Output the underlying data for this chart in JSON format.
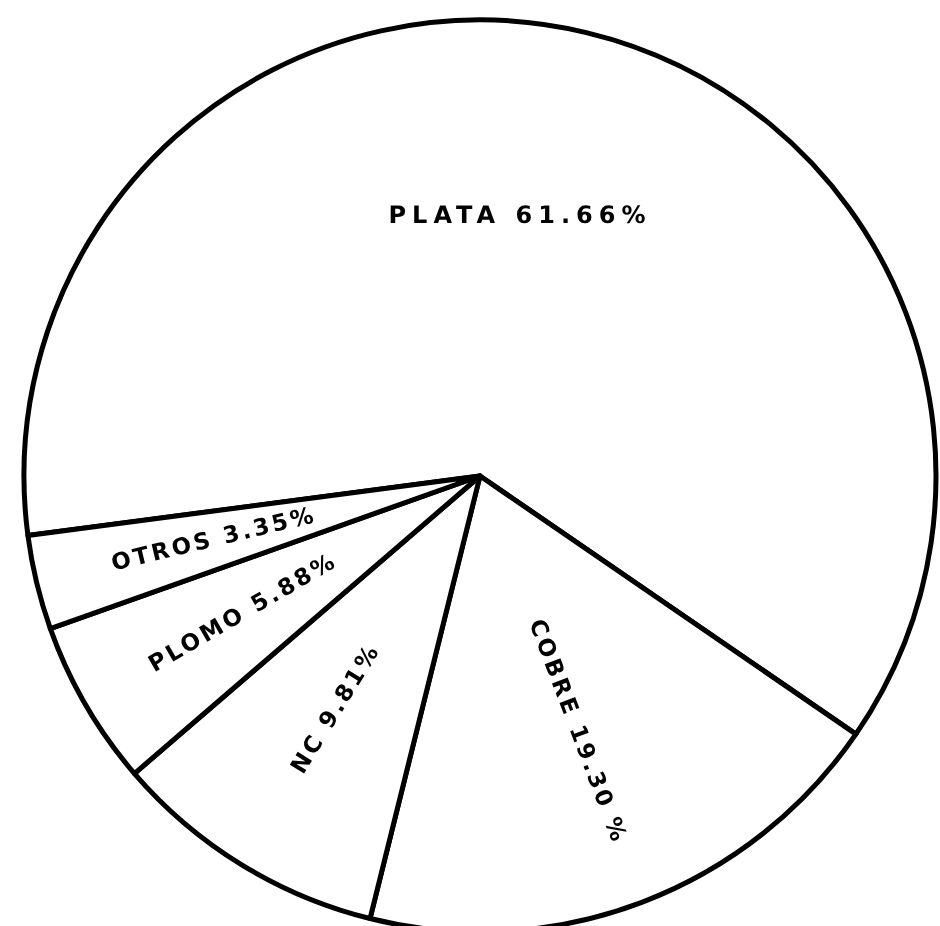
{
  "chart_data": {
    "type": "pie",
    "categories": [
      "PLATA",
      "COBRE",
      "NC",
      "PLOMO",
      "OTROS"
    ],
    "values": [
      61.66,
      19.3,
      9.81,
      5.88,
      3.35
    ],
    "colors": [
      "#ffffff",
      "#ffffff",
      "#ffffff",
      "#ffffff",
      "#ffffff"
    ],
    "value_labels": [
      "61.66%",
      "19.30 %",
      "9.81%",
      "5.88%",
      "3.35%"
    ]
  }
}
